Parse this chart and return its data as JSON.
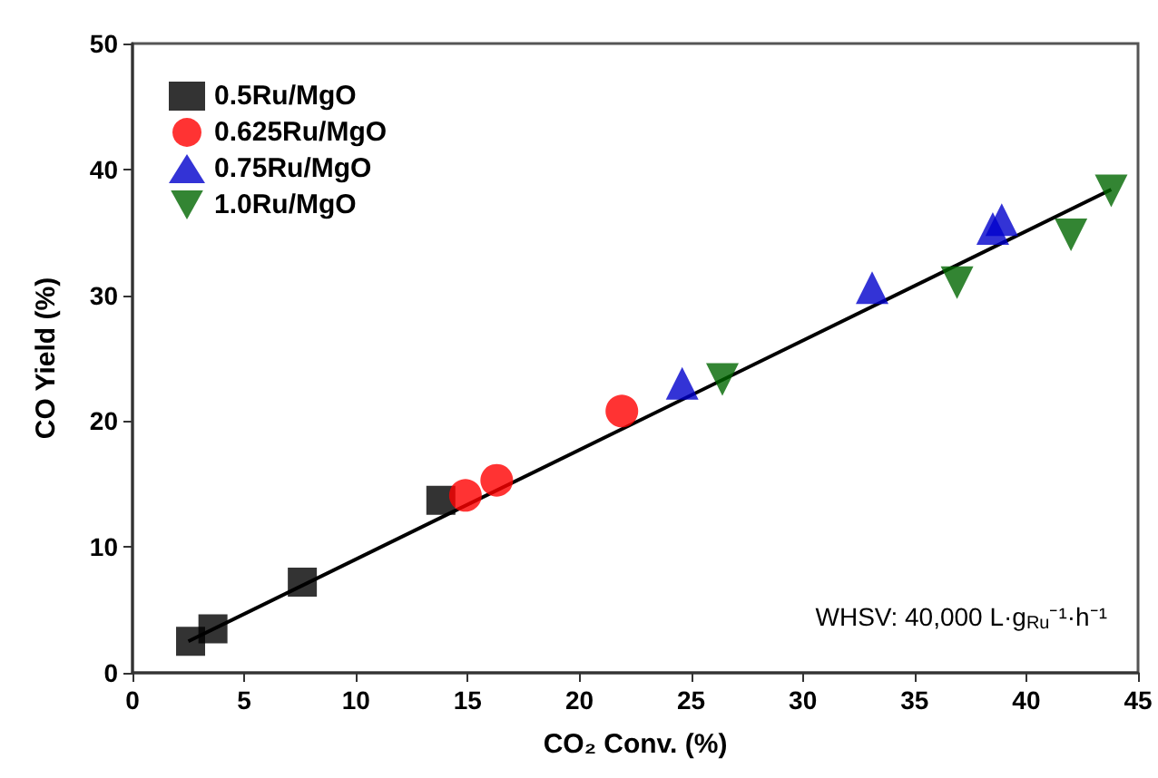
{
  "chart_data": {
    "type": "scatter",
    "xlabel": "CO₂ Conv. (%)",
    "ylabel": "CO Yield (%)",
    "xlim": [
      0,
      45
    ],
    "xticks": [
      0,
      5,
      10,
      15,
      20,
      25,
      30,
      35,
      40,
      45
    ],
    "ylim": [
      0,
      50
    ],
    "yticks": [
      0,
      10,
      20,
      30,
      40,
      50
    ],
    "grid": false,
    "legend": "top left",
    "annotations": [
      {
        "text": "WHSV: 40,000 L·g$_{Ru}$⁻¹·h⁻¹"
      }
    ],
    "series": [
      {
        "name": "0.5Ru/MgO",
        "color": "#000000",
        "marker": "square",
        "x": [
          2.6,
          3.6,
          7.6,
          13.8
        ],
        "values": [
          2.5,
          3.5,
          7.2,
          13.7
        ]
      },
      {
        "name": "0.625Ru/MgO",
        "color": "#ff0000",
        "marker": "circle",
        "x": [
          14.9,
          16.3,
          21.9
        ],
        "values": [
          14.1,
          15.3,
          20.8
        ]
      },
      {
        "name": "0.75Ru/MgO",
        "color": "#0000cc",
        "marker": "triangle",
        "x": [
          24.6,
          33.1,
          38.5,
          38.9
        ],
        "values": [
          23.0,
          30.6,
          35.3,
          36.0
        ]
      },
      {
        "name": "1.0Ru/MgO",
        "color": "#006600",
        "marker": "triangle-down",
        "x": [
          26.4,
          36.9,
          42.0,
          43.8
        ],
        "values": [
          23.3,
          31.0,
          34.8,
          38.3
        ]
      },
      {
        "type": "line",
        "color": "#000000",
        "marker": "none",
        "x": [
          2.5,
          43.8
        ],
        "values": [
          2.5,
          38.4
        ]
      }
    ]
  }
}
